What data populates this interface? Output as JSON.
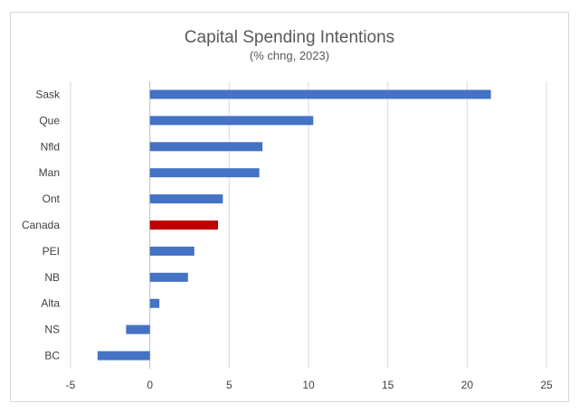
{
  "chart_data": {
    "type": "bar",
    "orientation": "horizontal",
    "title": "Capital Spending Intentions",
    "subtitle": "(% chng, 2023)",
    "xlabel": "",
    "ylabel": "",
    "xlim": [
      -5,
      25
    ],
    "xticks": [
      -5,
      0,
      5,
      10,
      15,
      20,
      25
    ],
    "grid": "vertical",
    "legend": "none",
    "categories": [
      "Sask",
      "Que",
      "Nfld",
      "Man",
      "Ont",
      "Canada",
      "PEI",
      "NB",
      "Alta",
      "NS",
      "BC"
    ],
    "values": [
      21.5,
      10.3,
      7.1,
      6.9,
      4.6,
      4.3,
      2.8,
      2.4,
      0.6,
      -1.5,
      -3.3
    ],
    "colors": {
      "default": "#4472c4",
      "highlight": "#c00000",
      "highlight_category": "Canada",
      "grid": "#d9d9d9",
      "axis": "#bfbfbf"
    }
  }
}
